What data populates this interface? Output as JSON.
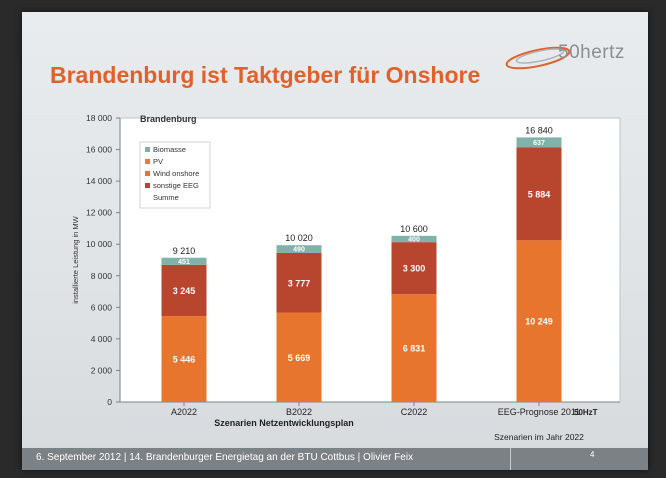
{
  "slide": {
    "title": "Brandenburg ist Taktgeber für Onshore",
    "logo_text": "50hertz",
    "footer": "6. September 2012 | 14. Brandenburger Energietag an der BTU Cottbus | Olivier Feix",
    "page_number": "4"
  },
  "colors": {
    "title": "#e0622a",
    "biomasse": "#7fb2a8",
    "pv": "#e87a3c",
    "wind": "#e8752e",
    "sonstige": "#b8452e"
  },
  "chart_data": {
    "type": "bar",
    "stacked": true,
    "title": "Brandenburg",
    "ylabel": "installierte Leistung in MW",
    "xlabel": "Szenarien Netzentwicklungsplan",
    "xlabel_right": "Szenarien im Jahr 2022",
    "categories": [
      "A2022",
      "B2022",
      "C2022",
      "EEG-Prognose 2011"
    ],
    "category_suffix": "50HzT",
    "ylim": [
      0,
      18000
    ],
    "yticks": [
      "0",
      "2 000",
      "4 000",
      "6 000",
      "8 000",
      "10 000",
      "12 000",
      "14 000",
      "16 000",
      "18 000"
    ],
    "legend": [
      "Biomasse",
      "PV",
      "Wind onshore",
      "sonstige EEG",
      "Summe"
    ],
    "series": [
      {
        "name": "Wind onshore",
        "values": [
          5446,
          5669,
          6831,
          10249
        ],
        "labels": [
          "5 446",
          "5 669",
          "6 831",
          "10 249"
        ]
      },
      {
        "name": "sonstige EEG",
        "values": [
          3245,
          3777,
          3300,
          5884
        ],
        "labels": [
          "3 245",
          "3 777",
          "3 300",
          "5 884"
        ]
      },
      {
        "name": "Biomasse",
        "values": [
          451,
          490,
          400,
          637
        ],
        "labels": [
          "451",
          "490",
          "400",
          "637"
        ]
      }
    ],
    "totals": [
      "9 210",
      "10 020",
      "10 600",
      "16 840"
    ]
  }
}
